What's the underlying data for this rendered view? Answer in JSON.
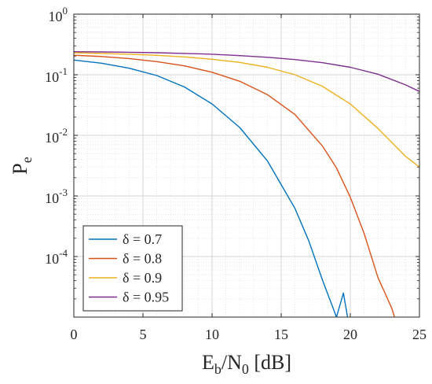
{
  "chart_data": {
    "type": "line",
    "xlabel": {
      "base": "E",
      "sub1": "b",
      "mid": "/N",
      "sub2": "0",
      "unit": " [dB]"
    },
    "ylabel": {
      "base": "P",
      "sub": "e"
    },
    "xlim": [
      0,
      25
    ],
    "ylim": [
      1e-05,
      1
    ],
    "y_scale": "log",
    "grid": true,
    "minor_grid": true,
    "legend_location": "bottom-left",
    "x_ticks": [
      "0",
      "5",
      "10",
      "15",
      "20",
      "25"
    ],
    "y_ticks": [
      {
        "base": "10",
        "exp": "0"
      },
      {
        "base": "10",
        "exp": "-1"
      },
      {
        "base": "10",
        "exp": "-2"
      },
      {
        "base": "10",
        "exp": "-3"
      },
      {
        "base": "10",
        "exp": "-4"
      }
    ],
    "series": [
      {
        "name": "δ = 0.7",
        "color": "#0072BD",
        "x": [
          0,
          2,
          4,
          6,
          8,
          10,
          12,
          14,
          16,
          17,
          18,
          19,
          19.5,
          19.8
        ],
        "y": [
          0.175,
          0.155,
          0.128,
          0.097,
          0.063,
          0.033,
          0.0135,
          0.0038,
          0.00062,
          0.00018,
          4e-05,
          6.5e-06,
          2.5e-05,
          1e-05
        ]
      },
      {
        "name": "δ = 0.8",
        "color": "#D95319",
        "x": [
          0,
          2,
          4,
          6,
          8,
          10,
          12,
          14,
          16,
          18,
          19,
          20,
          21,
          22,
          23,
          23.2
        ],
        "y": [
          0.21,
          0.2,
          0.185,
          0.165,
          0.14,
          0.11,
          0.078,
          0.047,
          0.022,
          0.0066,
          0.0029,
          0.00095,
          0.00024,
          4.5e-05,
          1.4e-05,
          1e-05
        ]
      },
      {
        "name": "δ = 0.9",
        "color": "#EDB120",
        "x": [
          0,
          2,
          4,
          6,
          8,
          10,
          12,
          14,
          16,
          18,
          20,
          22,
          24,
          25
        ],
        "y": [
          0.23,
          0.225,
          0.218,
          0.209,
          0.197,
          0.18,
          0.16,
          0.133,
          0.1,
          0.064,
          0.033,
          0.013,
          0.0045,
          0.003
        ]
      },
      {
        "name": "δ = 0.95",
        "color": "#7E2F8E",
        "x": [
          0,
          2,
          4,
          6,
          8,
          10,
          12,
          14,
          16,
          18,
          20,
          22,
          24,
          25
        ],
        "y": [
          0.24,
          0.238,
          0.235,
          0.231,
          0.225,
          0.218,
          0.207,
          0.194,
          0.178,
          0.158,
          0.133,
          0.102,
          0.068,
          0.053
        ]
      }
    ]
  }
}
